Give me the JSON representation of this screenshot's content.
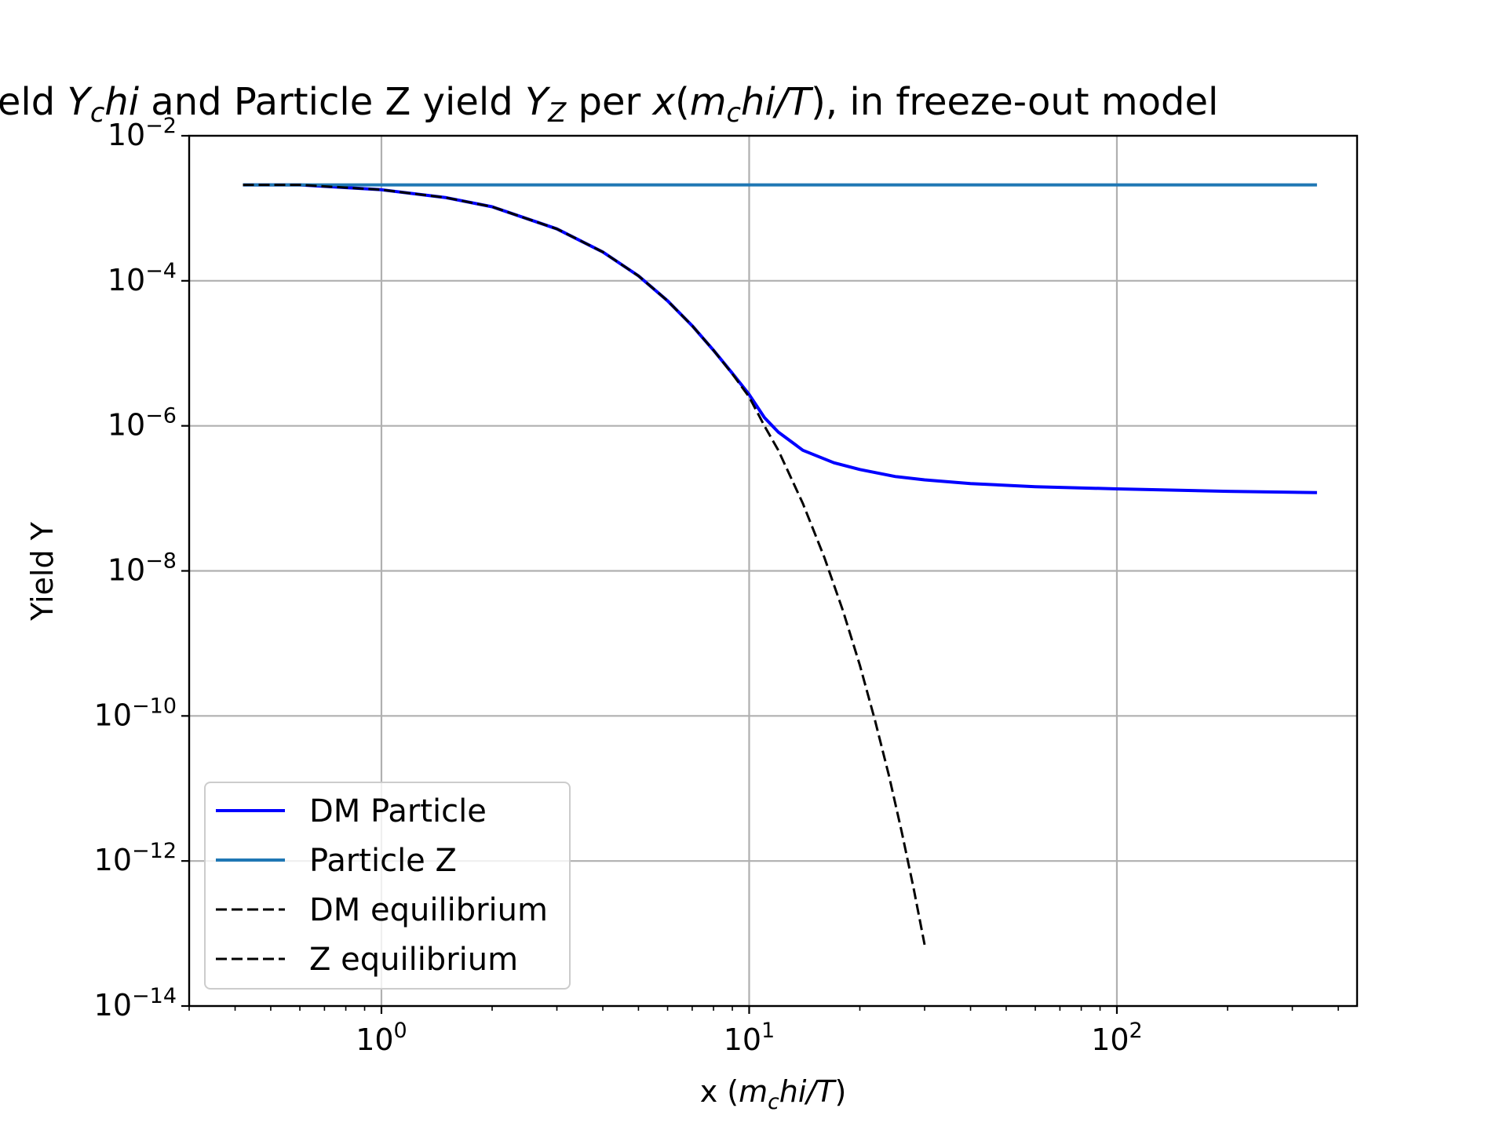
{
  "chart_data": {
    "type": "line",
    "title": {
      "parts": [
        {
          "text": "Dark matter yield ",
          "style": "normal",
          "shift": "none"
        },
        {
          "text": "Y",
          "style": "italic",
          "shift": "none"
        },
        {
          "text": "c",
          "style": "italic",
          "shift": "sub"
        },
        {
          "text": "hi",
          "style": "italic",
          "shift": "none"
        },
        {
          "text": " and Particle Z yield ",
          "style": "normal",
          "shift": "none"
        },
        {
          "text": "Y",
          "style": "italic",
          "shift": "none"
        },
        {
          "text": "Z",
          "style": "italic",
          "shift": "sub"
        },
        {
          "text": " per ",
          "style": "normal",
          "shift": "none"
        },
        {
          "text": "x",
          "style": "italic",
          "shift": "none"
        },
        {
          "text": "(",
          "style": "normal",
          "shift": "none"
        },
        {
          "text": "m",
          "style": "italic",
          "shift": "none"
        },
        {
          "text": "c",
          "style": "italic",
          "shift": "sub"
        },
        {
          "text": "hi/T",
          "style": "italic",
          "shift": "none"
        },
        {
          "text": "), in freeze-out model",
          "style": "normal",
          "shift": "none"
        }
      ]
    },
    "xlabel": {
      "parts": [
        {
          "text": "x (",
          "style": "normal",
          "shift": "none"
        },
        {
          "text": "m",
          "style": "italic",
          "shift": "none"
        },
        {
          "text": "c",
          "style": "italic",
          "shift": "sub"
        },
        {
          "text": "hi/T",
          "style": "italic",
          "shift": "none"
        },
        {
          "text": ")",
          "style": "normal",
          "shift": "none"
        }
      ]
    },
    "ylabel": "Yield Y",
    "xscale": "log",
    "yscale": "log",
    "xlim": [
      0.3,
      450
    ],
    "ylim": [
      1e-14,
      0.01
    ],
    "grid": true,
    "legend_position": "lower-left",
    "x_ticks": [
      {
        "value": 1,
        "base": "10",
        "exp": "0"
      },
      {
        "value": 10,
        "base": "10",
        "exp": "1"
      },
      {
        "value": 100,
        "base": "10",
        "exp": "2"
      }
    ],
    "y_ticks": [
      {
        "value": 0.01,
        "base": "10",
        "exp": "−2"
      },
      {
        "value": 0.0001,
        "base": "10",
        "exp": "−4"
      },
      {
        "value": 1e-06,
        "base": "10",
        "exp": "−6"
      },
      {
        "value": 1e-08,
        "base": "10",
        "exp": "−8"
      },
      {
        "value": 1e-10,
        "base": "10",
        "exp": "−10"
      },
      {
        "value": 1e-12,
        "base": "10",
        "exp": "−12"
      },
      {
        "value": 1e-14,
        "base": "10",
        "exp": "−14"
      }
    ],
    "series": [
      {
        "name": "DM Particle",
        "color": "#0000ff",
        "dash": "solid",
        "x": [
          0.42,
          0.6,
          1.0,
          1.5,
          2.0,
          3.0,
          4.0,
          5.0,
          6.0,
          7.0,
          8.0,
          9.0,
          10.0,
          11.0,
          12.0,
          14.0,
          17.0,
          20.0,
          25.0,
          30.0,
          40.0,
          60.0,
          100.0,
          200.0,
          350.0
        ],
        "y": [
          0.0021,
          0.0021,
          0.0018,
          0.0014,
          0.00105,
          0.00052,
          0.00025,
          0.000117,
          5.3e-05,
          2.4e-05,
          1.1e-05,
          5.3e-06,
          2.7e-06,
          1.3e-06,
          8.2e-07,
          4.6e-07,
          3.1e-07,
          2.5e-07,
          2e-07,
          1.8e-07,
          1.6e-07,
          1.45e-07,
          1.35e-07,
          1.25e-07,
          1.2e-07
        ]
      },
      {
        "name": "Particle Z",
        "color": "#1f77b4",
        "dash": "solid",
        "x": [
          0.42,
          350.0
        ],
        "y": [
          0.0021,
          0.0021
        ]
      },
      {
        "name": "DM equilibrium",
        "color": "#000000",
        "dash": "dashed",
        "x": [
          0.42,
          0.6,
          1.0,
          1.5,
          2.0,
          3.0,
          4.0,
          5.0,
          6.0,
          7.0,
          8.0,
          9.0,
          10.0,
          11.0,
          12.0,
          14.0,
          16.0,
          18.0,
          20.0,
          22.0,
          24.0,
          26.0,
          28.0,
          30.0
        ],
        "y": [
          0.0021,
          0.0021,
          0.0018,
          0.0014,
          0.00105,
          0.00052,
          0.00025,
          0.000117,
          5.3e-05,
          2.4e-05,
          1.1e-05,
          5.2e-06,
          2.5e-06,
          1e-06,
          4.6e-07,
          8.5e-08,
          1.55e-08,
          2.8e-09,
          5e-10,
          8.6e-11,
          1.5e-11,
          2.5e-12,
          4.2e-13,
          7e-14
        ]
      },
      {
        "name": "Z equilibrium",
        "color": "#000000",
        "dash": "dashed",
        "x": [],
        "y": []
      }
    ]
  }
}
